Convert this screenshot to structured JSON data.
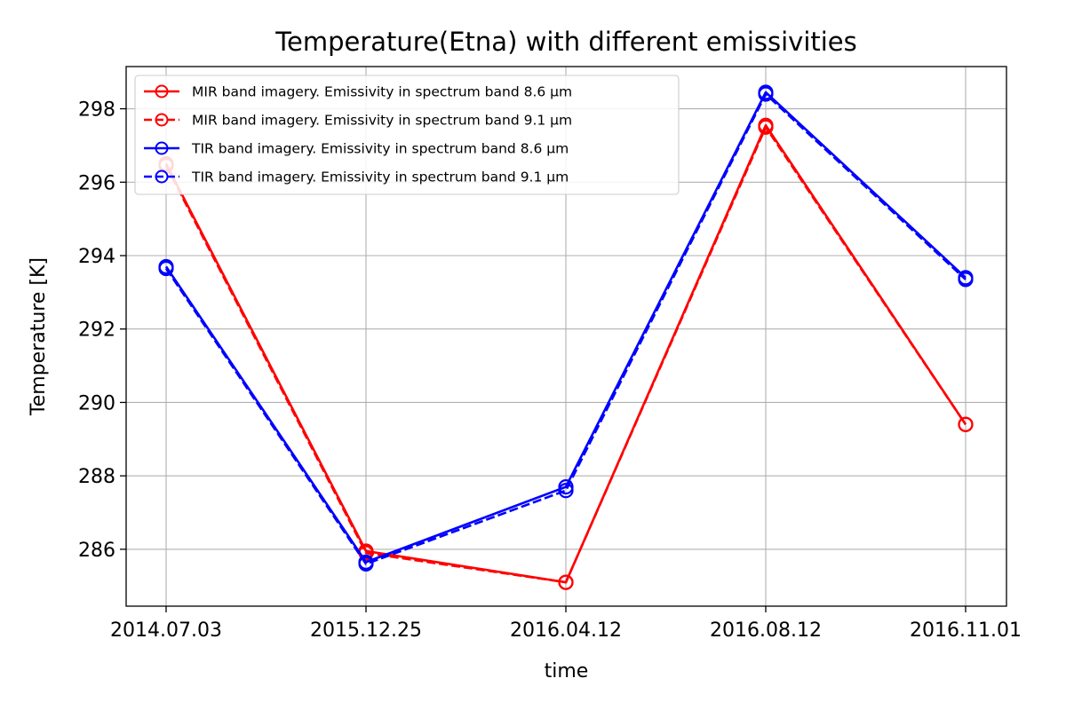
{
  "chart_data": {
    "type": "line",
    "title": "Temperature(Etna) with different emissivities",
    "xlabel": "time",
    "ylabel": "Temperature [K]",
    "categories": [
      "2014.07.03",
      "2015.12.25",
      "2016.04.12",
      "2016.08.12",
      "2016.11.01"
    ],
    "ylim": [
      284.45,
      299.15
    ],
    "yticks": [
      286,
      288,
      290,
      292,
      294,
      296,
      298
    ],
    "grid": true,
    "legend_position": "top-left",
    "series": [
      {
        "name": "MIR band imagery. Emissivity in spectrum band 8.6 μm",
        "color": "#ff0000",
        "linestyle": "solid",
        "marker": "open-circle",
        "values": [
          296.5,
          285.95,
          285.1,
          297.55,
          289.4
        ]
      },
      {
        "name": "MIR band imagery. Emissivity in spectrum band 9.1 μm",
        "color": "#ff0000",
        "linestyle": "dashed",
        "marker": "open-circle",
        "values": [
          296.45,
          285.9,
          285.1,
          297.5,
          289.4
        ]
      },
      {
        "name": "TIR band imagery. Emissivity in spectrum band 8.6 μm",
        "color": "#0000ff",
        "linestyle": "solid",
        "marker": "open-circle",
        "values": [
          293.7,
          285.65,
          287.7,
          298.45,
          293.4
        ]
      },
      {
        "name": "TIR band imagery. Emissivity in spectrum band 9.1 μm",
        "color": "#0000ff",
        "linestyle": "dashed",
        "marker": "open-circle",
        "values": [
          293.65,
          285.6,
          287.6,
          298.4,
          293.35
        ]
      }
    ]
  }
}
